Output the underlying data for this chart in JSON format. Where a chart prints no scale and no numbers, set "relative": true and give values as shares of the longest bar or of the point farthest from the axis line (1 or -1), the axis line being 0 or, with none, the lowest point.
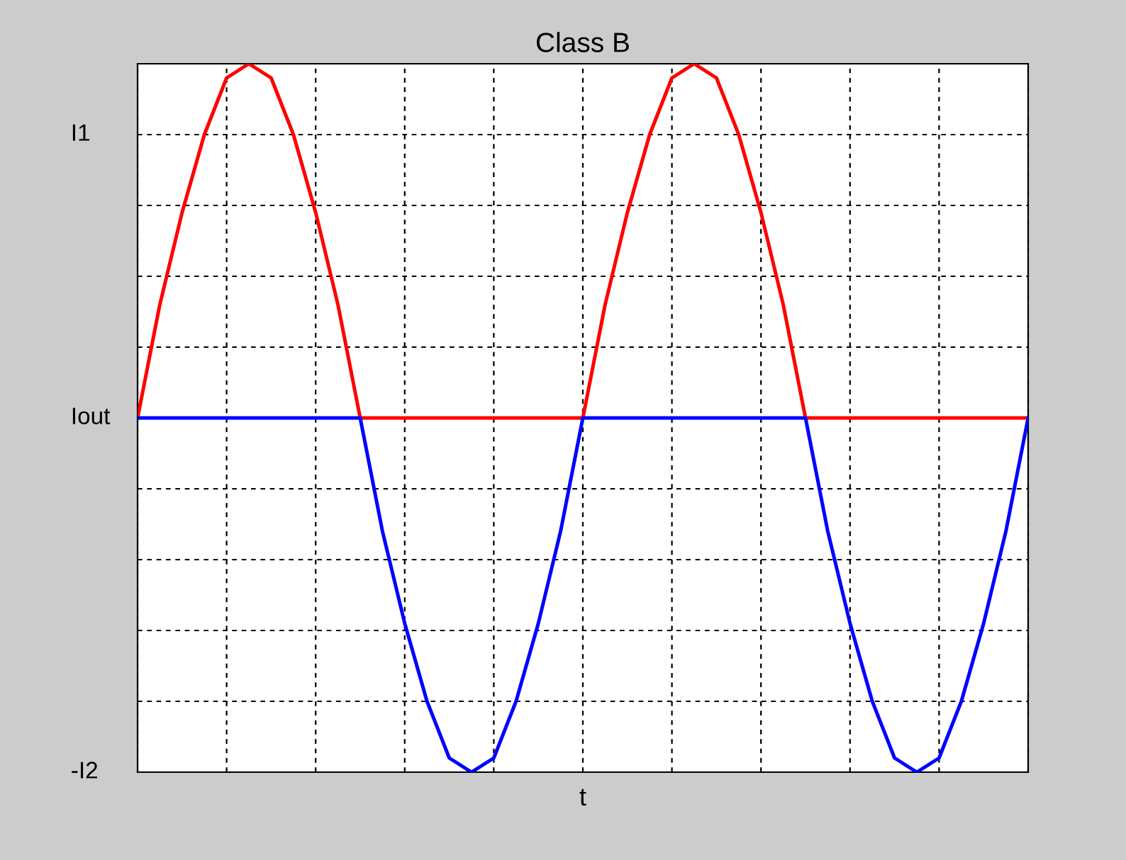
{
  "chart_data": {
    "type": "line",
    "title": "Class B",
    "xlabel": "t",
    "relative": true,
    "categories": [
      null,
      null,
      null,
      null,
      null,
      null,
      null,
      null,
      null,
      null,
      null,
      null,
      null,
      null,
      null,
      null,
      null,
      null,
      null,
      null,
      null,
      null,
      null,
      null,
      null,
      null,
      null,
      null,
      null,
      null,
      null,
      null,
      null,
      null,
      null,
      null,
      null,
      null,
      null,
      null,
      null
    ],
    "series": [
      {
        "color": "#ff0000",
        "values": [
          0.5,
          0.66,
          0.79,
          0.9,
          0.98,
          1,
          0.98,
          0.9,
          0.79,
          0.66,
          0.5,
          0.5,
          0.5,
          0.5,
          0.5,
          0.5,
          0.5,
          0.5,
          0.5,
          0.5,
          0.5,
          0.66,
          0.79,
          0.9,
          0.98,
          1,
          0.98,
          0.9,
          0.79,
          0.66,
          0.5,
          0.5,
          0.5,
          0.5,
          0.5,
          0.5,
          0.5,
          0.5,
          0.5,
          0.5,
          0.5
        ]
      },
      {
        "color": "#0000ff",
        "values": [
          0.5,
          0.5,
          0.5,
          0.5,
          0.5,
          0.5,
          0.5,
          0.5,
          0.5,
          0.5,
          0.5,
          0.34,
          0.21,
          0.1,
          0.02,
          0,
          0.02,
          0.1,
          0.21,
          0.34,
          0.5,
          0.5,
          0.5,
          0.5,
          0.5,
          0.5,
          0.5,
          0.5,
          0.5,
          0.5,
          0.5,
          0.34,
          0.21,
          0.1,
          0.02,
          0,
          0.02,
          0.1,
          0.21,
          0.34,
          0.5
        ]
      }
    ],
    "annotations": [
      "I1",
      "Iout",
      "-I2"
    ],
    "grid": true,
    "line_style": "solid",
    "marker": "none",
    "legend": false
  }
}
